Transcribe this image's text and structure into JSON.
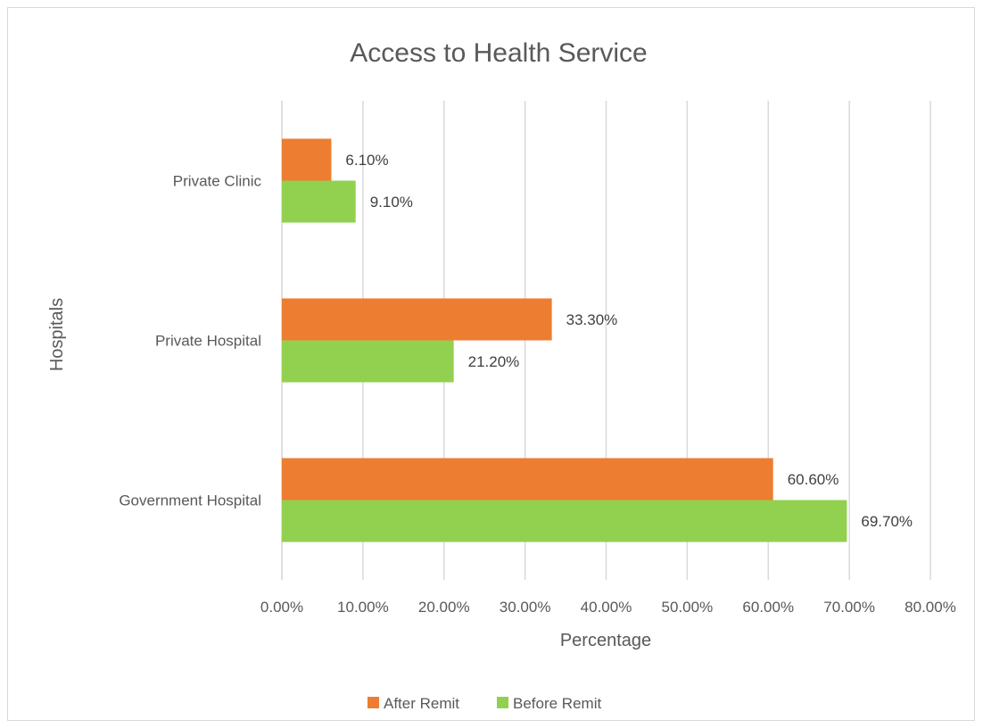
{
  "chart_data": {
    "type": "bar",
    "orientation": "horizontal",
    "title": "Access to Health Service",
    "xlabel": "Percentage",
    "ylabel": "Hospitals",
    "categories": [
      "Private Clinic",
      "Private Hospital",
      "Government Hospital"
    ],
    "series": [
      {
        "name": "After Remit",
        "color": "#ed7d31",
        "values": [
          6.1,
          33.3,
          60.6
        ],
        "labels": [
          "6.10%",
          "33.30%",
          "60.60%"
        ]
      },
      {
        "name": "Before Remit",
        "color": "#92d050",
        "values": [
          9.1,
          21.2,
          69.7
        ],
        "labels": [
          "9.10%",
          "21.20%",
          "69.70%"
        ]
      }
    ],
    "xlim": [
      0,
      80
    ],
    "xticks": [
      0,
      10,
      20,
      30,
      40,
      50,
      60,
      70,
      80
    ],
    "xtick_labels": [
      "0.00%",
      "10.00%",
      "20.00%",
      "30.00%",
      "40.00%",
      "50.00%",
      "60.00%",
      "70.00%",
      "80.00%"
    ],
    "grid": "vertical",
    "legend_position": "bottom"
  }
}
